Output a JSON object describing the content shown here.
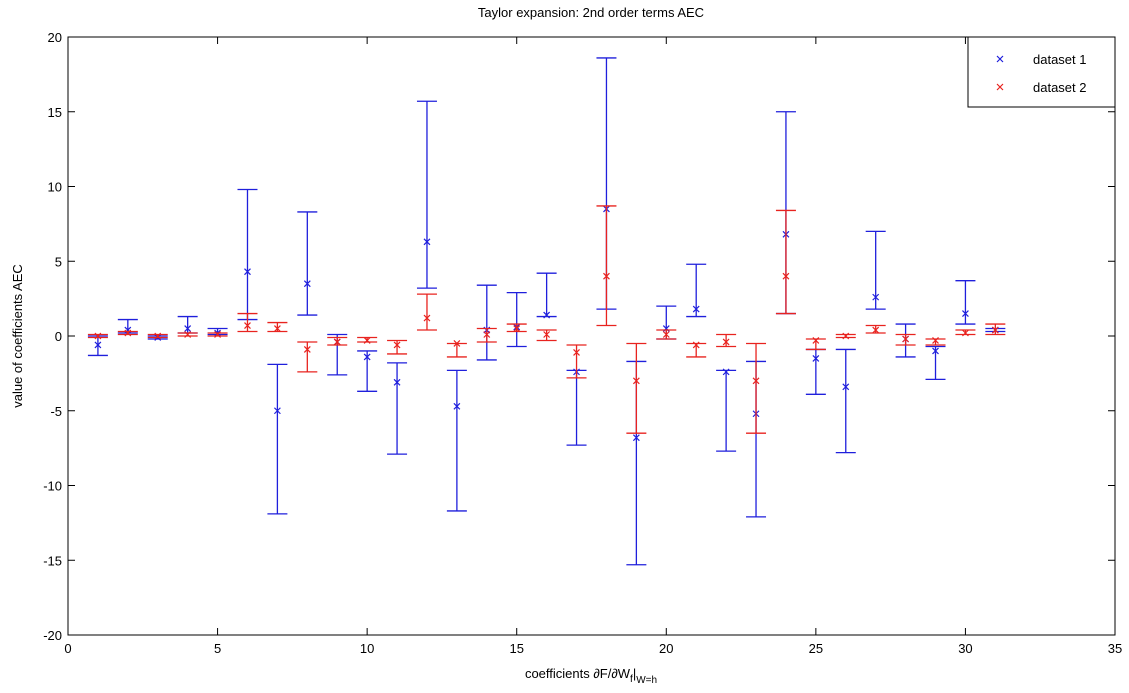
{
  "chart_data": {
    "type": "errorbar",
    "title": "Taylor expansion: 2nd order terms AEC",
    "xlabel": [
      "coefficients ∂F/∂W",
      "f",
      "|",
      "W=h"
    ],
    "ylabel": "value of coefficients AEC",
    "xlim": [
      0,
      35
    ],
    "ylim": [
      -20,
      20
    ],
    "xticks": [
      0,
      5,
      10,
      15,
      20,
      25,
      30,
      35
    ],
    "yticks": [
      -20,
      -15,
      -10,
      -5,
      0,
      5,
      10,
      15,
      20
    ],
    "legend_position": "upper right",
    "x": [
      1,
      2,
      3,
      4,
      5,
      6,
      7,
      8,
      9,
      10,
      11,
      12,
      13,
      14,
      15,
      16,
      17,
      18,
      19,
      20,
      21,
      22,
      23,
      24,
      25,
      26,
      27,
      28,
      29,
      30,
      31
    ],
    "series": [
      {
        "name": "dataset 1",
        "color": "#1f1fdc",
        "values": [
          -0.6,
          0.4,
          -0.1,
          0.5,
          0.2,
          4.3,
          -5.0,
          3.5,
          -0.4,
          -1.4,
          -3.1,
          6.3,
          -4.7,
          0.4,
          0.6,
          1.4,
          -2.4,
          8.5,
          -6.8,
          0.5,
          1.8,
          -2.4,
          -5.2,
          6.8,
          -1.5,
          -3.4,
          2.6,
          -0.2,
          -1.0,
          1.5,
          0.4
        ],
        "low": [
          -1.3,
          0.2,
          -0.2,
          0.2,
          0.1,
          1.1,
          -11.9,
          1.4,
          -2.6,
          -3.7,
          -7.9,
          3.2,
          -11.7,
          -1.6,
          -0.7,
          1.3,
          -7.3,
          1.8,
          -15.3,
          -0.2,
          1.3,
          -7.7,
          -12.1,
          1.5,
          -3.9,
          -7.8,
          1.8,
          -1.4,
          -2.9,
          0.8,
          0.3
        ],
        "high": [
          0.0,
          1.1,
          0.0,
          1.3,
          0.5,
          9.8,
          -1.9,
          8.3,
          0.1,
          -1.0,
          -1.8,
          15.7,
          -2.3,
          3.4,
          2.9,
          4.2,
          -2.3,
          18.6,
          -1.7,
          2.0,
          4.8,
          -2.3,
          -1.7,
          15.0,
          -0.9,
          -0.9,
          7.0,
          0.8,
          -0.7,
          3.7,
          0.5
        ]
      },
      {
        "name": "dataset 2",
        "color": "#e8231f",
        "values": [
          0.0,
          0.2,
          0.0,
          0.1,
          0.1,
          0.7,
          0.5,
          -0.9,
          -0.4,
          -0.3,
          -0.6,
          1.2,
          -0.5,
          0.1,
          0.5,
          0.1,
          -1.1,
          4.0,
          -3.0,
          0.1,
          -0.6,
          -0.4,
          -3.0,
          4.0,
          -0.3,
          0.0,
          0.4,
          -0.2,
          -0.3,
          0.2,
          0.4
        ],
        "low": [
          -0.1,
          0.1,
          -0.1,
          0.0,
          0.0,
          0.3,
          0.3,
          -2.4,
          -0.6,
          -0.4,
          -1.2,
          0.4,
          -1.4,
          -0.4,
          0.3,
          -0.3,
          -2.8,
          0.7,
          -6.5,
          -0.2,
          -1.4,
          -0.7,
          -6.5,
          1.5,
          -0.9,
          -0.1,
          0.2,
          -0.6,
          -0.6,
          0.1,
          0.1
        ],
        "high": [
          0.1,
          0.3,
          0.1,
          0.2,
          0.2,
          1.5,
          0.9,
          -0.4,
          -0.1,
          -0.1,
          -0.3,
          2.8,
          -0.5,
          0.5,
          0.8,
          0.4,
          -0.6,
          8.7,
          -0.5,
          0.4,
          -0.5,
          0.1,
          -0.5,
          8.4,
          -0.2,
          0.1,
          0.7,
          0.1,
          -0.2,
          0.4,
          0.8
        ]
      }
    ]
  }
}
